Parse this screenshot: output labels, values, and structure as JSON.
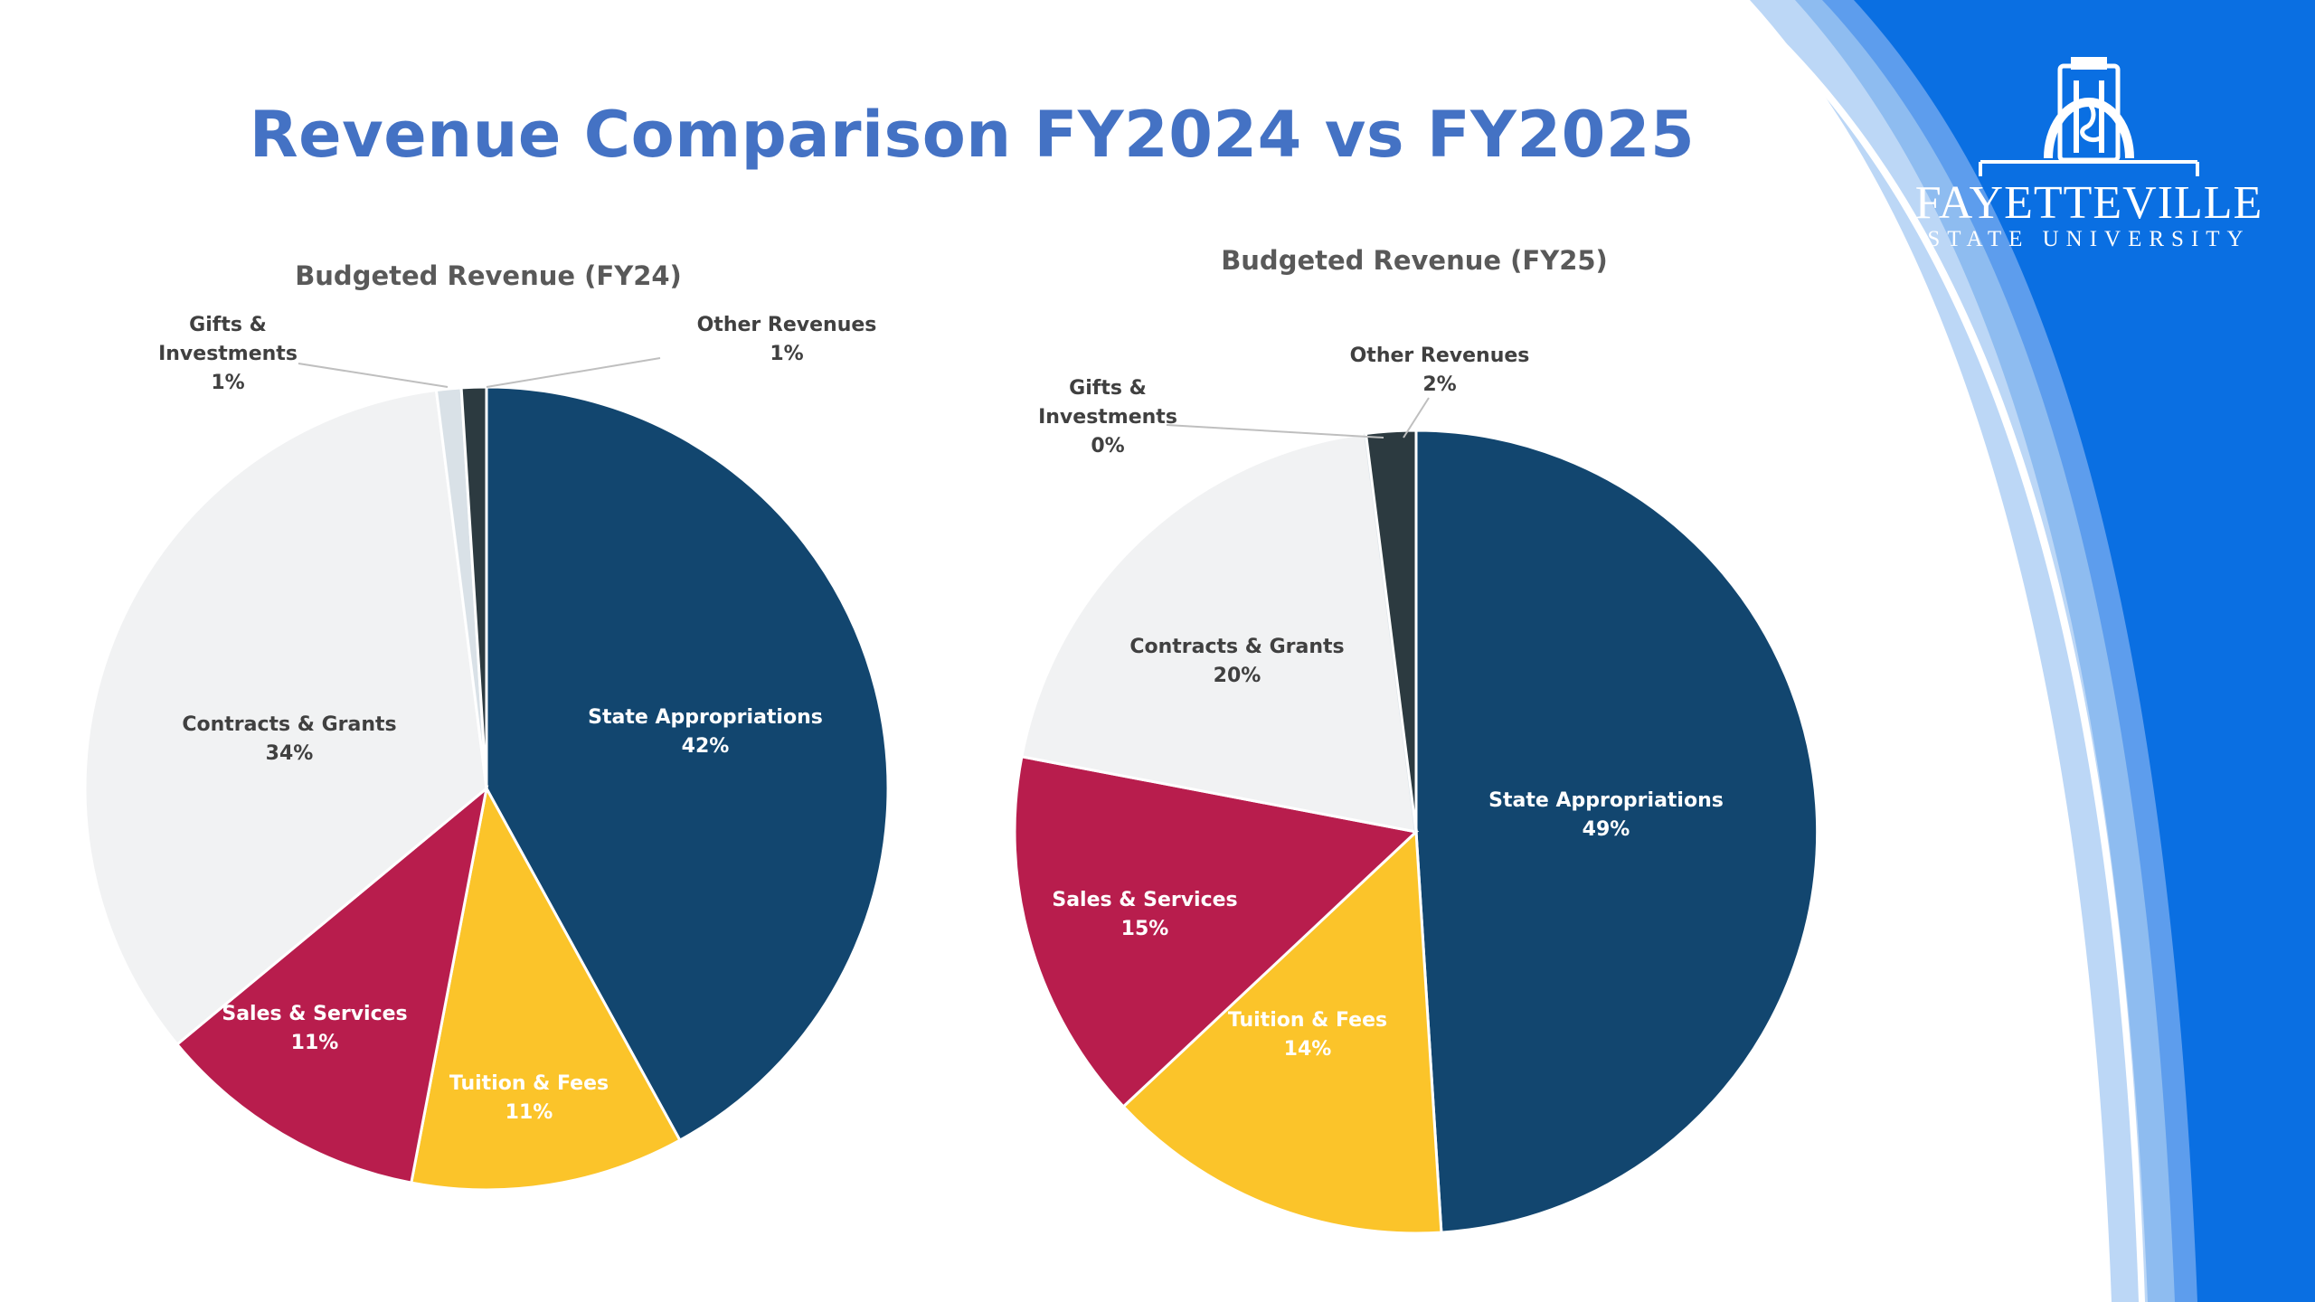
{
  "slide": {
    "title": "Revenue Comparison FY2024 vs FY2025"
  },
  "logo": {
    "line1": "FAYETTEVILLE",
    "line2": "STATE UNIVERSITY"
  },
  "colors": {
    "accent_blue": "#0a6fe2",
    "title_blue": "#4472c4"
  },
  "chart_data": [
    {
      "type": "pie",
      "title": "Budgeted Revenue (FY24)",
      "slices": [
        {
          "label": "State Appropriations",
          "value": 42,
          "pct_label": "42%",
          "color": "#12466f",
          "text_color": "#ffffff"
        },
        {
          "label": "Tuition & Fees",
          "value": 11,
          "pct_label": "11%",
          "color": "#fbc42a",
          "text_color": "#ffffff"
        },
        {
          "label": "Sales & Services",
          "value": 11,
          "pct_label": "11%",
          "color": "#b81d4d",
          "text_color": "#ffffff"
        },
        {
          "label": "Contracts & Grants",
          "value": 34,
          "pct_label": "34%",
          "color": "#f1f2f3",
          "text_color": "#404040"
        },
        {
          "label": "Gifts & Investments",
          "value": 1,
          "pct_label": "1%",
          "color": "#d9e1e7",
          "text_color": "#404040"
        },
        {
          "label": "Other Revenues",
          "value": 1,
          "pct_label": "1%",
          "color": "#2c3a40",
          "text_color": "#404040"
        }
      ],
      "legend": "none",
      "data_labels": "category name and percentage"
    },
    {
      "type": "pie",
      "title": "Budgeted Revenue (FY25)",
      "slices": [
        {
          "label": "State Appropriations",
          "value": 49,
          "pct_label": "49%",
          "color": "#12466f",
          "text_color": "#ffffff"
        },
        {
          "label": "Tuition & Fees",
          "value": 14,
          "pct_label": "14%",
          "color": "#fbc42a",
          "text_color": "#ffffff"
        },
        {
          "label": "Sales & Services",
          "value": 15,
          "pct_label": "15%",
          "color": "#b81d4d",
          "text_color": "#ffffff"
        },
        {
          "label": "Contracts & Grants",
          "value": 20,
          "pct_label": "20%",
          "color": "#f1f2f3",
          "text_color": "#404040"
        },
        {
          "label": "Gifts & Investments",
          "value": 0,
          "pct_label": "0%",
          "color": "#d9e1e7",
          "text_color": "#404040"
        },
        {
          "label": "Other Revenues",
          "value": 2,
          "pct_label": "2%",
          "color": "#2c3a40",
          "text_color": "#404040"
        }
      ],
      "legend": "none",
      "data_labels": "category name and percentage"
    }
  ]
}
